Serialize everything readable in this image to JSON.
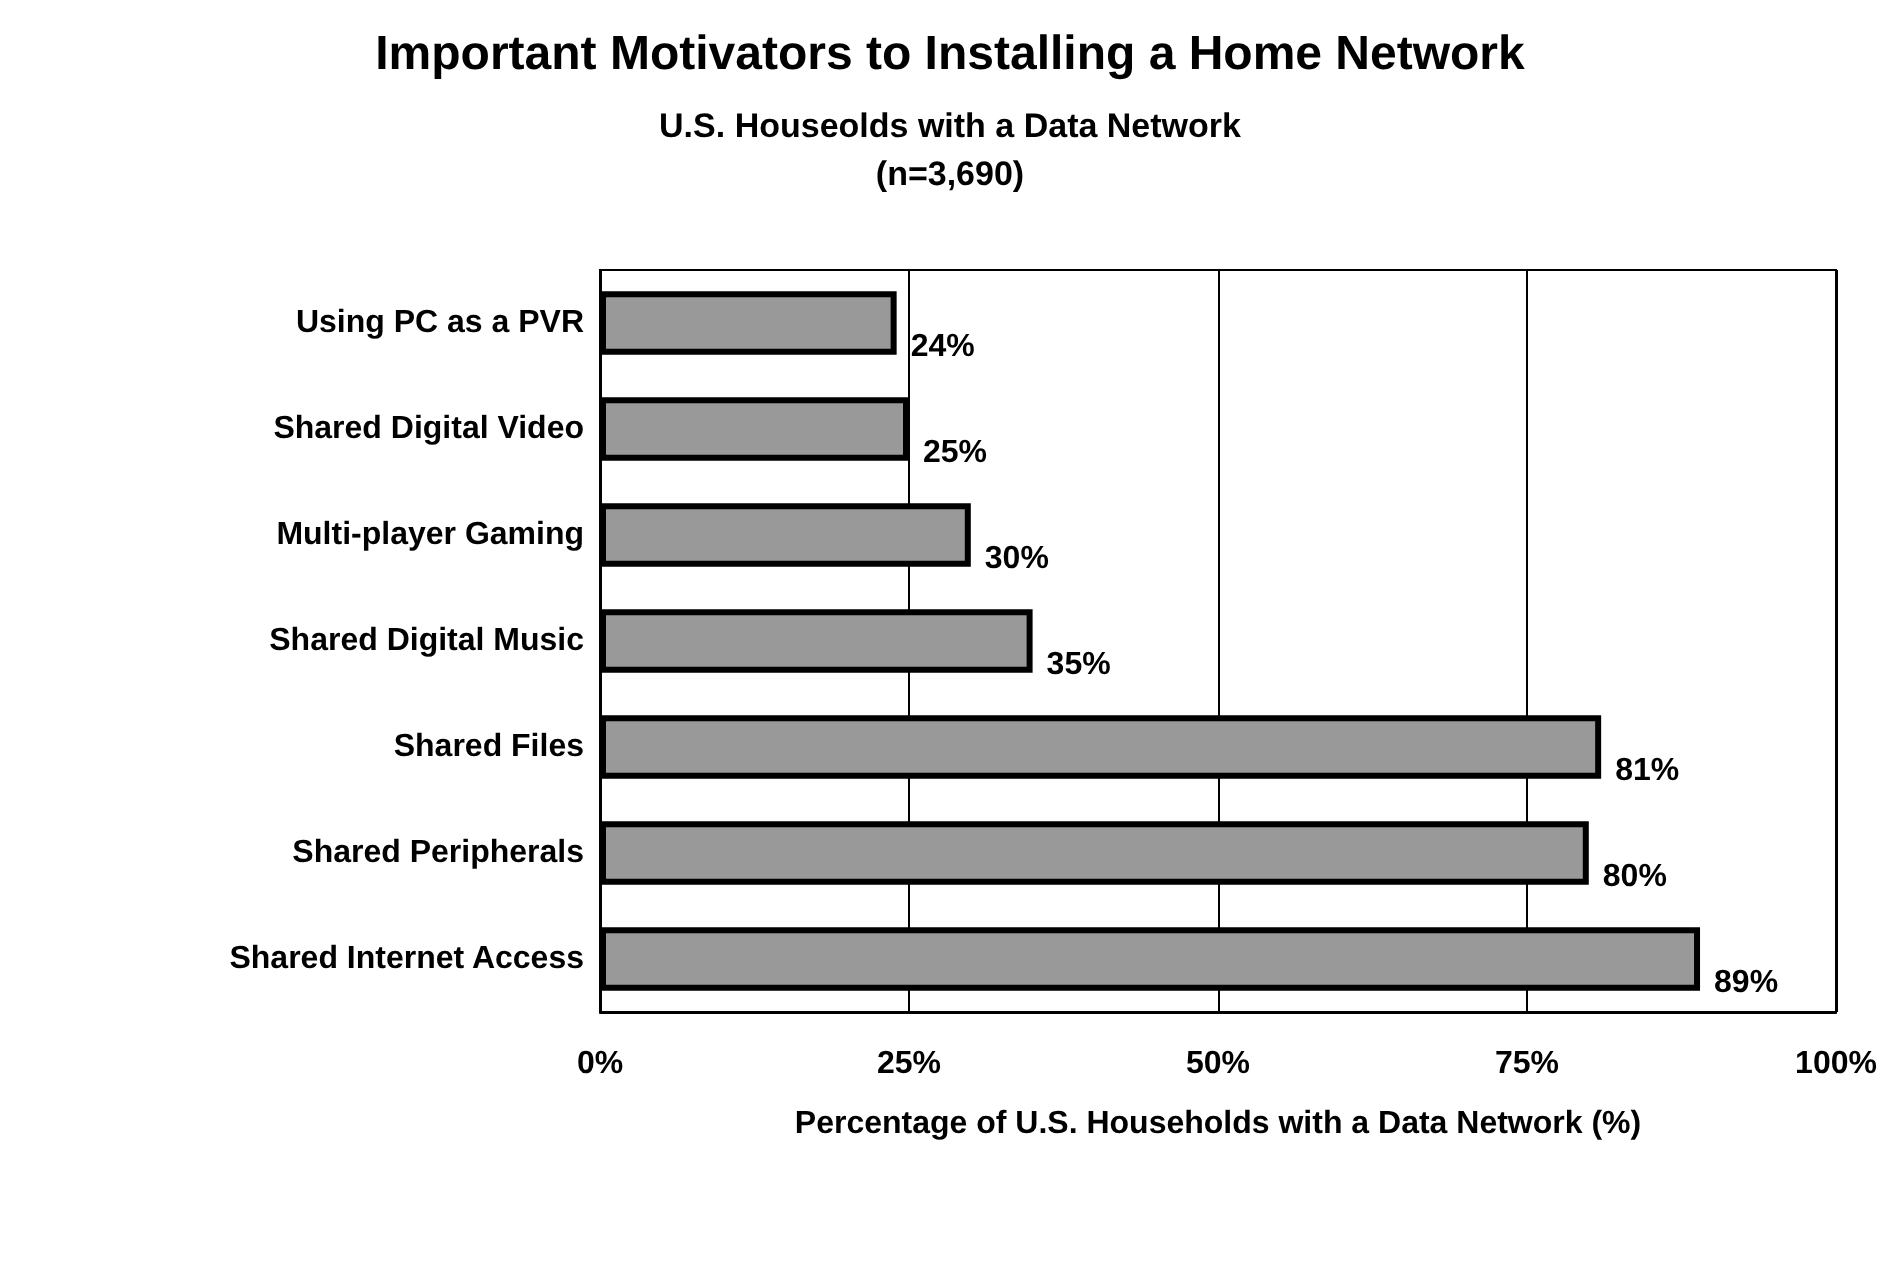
{
  "chart_data": {
    "type": "bar",
    "orientation": "horizontal",
    "title": "Important Motivators to Installing a Home Network",
    "subtitle": "U.S. Houseolds with a Data Network\n(n=3,690)",
    "xlabel": "Percentage of U.S. Households with a Data Network (%)",
    "categories": [
      "Using PC as a PVR",
      "Shared Digital Video",
      "Multi-player Gaming",
      "Shared Digital Music",
      "Shared Files",
      "Shared Peripherals",
      "Shared Internet Access"
    ],
    "values": [
      24,
      25,
      30,
      35,
      81,
      80,
      89
    ],
    "color": "#999999",
    "value_labels": [
      "24%",
      "25%",
      "30%",
      "35%",
      "81%",
      "80%",
      "89%"
    ],
    "xlim": [
      0,
      100
    ],
    "xticks": [
      {
        "value": 0,
        "label": "0%"
      },
      {
        "value": 25,
        "label": "25%"
      },
      {
        "value": 50,
        "label": "50%"
      },
      {
        "value": 75,
        "label": "75%"
      },
      {
        "value": 100,
        "label": "100%"
      }
    ],
    "grid": "x"
  }
}
